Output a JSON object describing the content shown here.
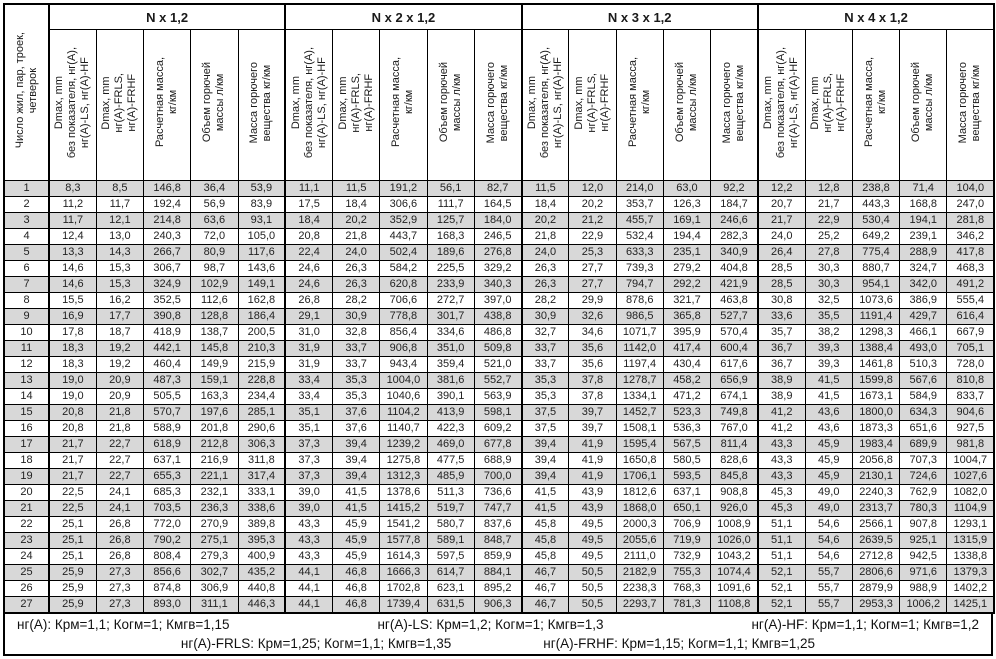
{
  "colors": {
    "shaded_row": "#d8d8d8",
    "border": "#000000",
    "text": "#1a1a1a"
  },
  "table": {
    "row_label_header": "Число жил, пар, троек,\nчетверок",
    "groups": [
      {
        "title": "N x 1,2"
      },
      {
        "title": "N x 2 x 1,2"
      },
      {
        "title": "N x 3 x 1,2"
      },
      {
        "title": "N x 4 x 1,2"
      }
    ],
    "sub_headers": [
      "Dmax, mm\nбез показателя, нг(А),\nнг(А)-LS, нг(А)-HF",
      "Dmax, mm\nнг(А)-FRLS,\nнг(А)-FRHF",
      "Расчетная масса,\nкг/км",
      "Объем горючей\nмассы л/км",
      "Масса горючего\nвещества кг/км"
    ],
    "rows": [
      {
        "n": "1",
        "v": [
          "8,3",
          "8,5",
          "146,8",
          "36,4",
          "53,9",
          "11,1",
          "11,5",
          "191,2",
          "56,1",
          "82,7",
          "11,5",
          "12,0",
          "214,0",
          "63,0",
          "92,2",
          "12,2",
          "12,8",
          "238,8",
          "71,4",
          "104,0"
        ]
      },
      {
        "n": "2",
        "v": [
          "11,2",
          "11,7",
          "192,4",
          "56,9",
          "83,9",
          "17,5",
          "18,4",
          "306,6",
          "111,7",
          "164,5",
          "18,4",
          "20,2",
          "353,7",
          "126,3",
          "184,7",
          "20,7",
          "21,7",
          "443,3",
          "168,8",
          "247,0"
        ]
      },
      {
        "n": "3",
        "v": [
          "11,7",
          "12,1",
          "214,8",
          "63,6",
          "93,1",
          "18,4",
          "20,2",
          "352,9",
          "125,7",
          "184,0",
          "20,2",
          "21,2",
          "455,7",
          "169,1",
          "246,6",
          "21,7",
          "22,9",
          "530,4",
          "194,1",
          "281,8"
        ]
      },
      {
        "n": "4",
        "v": [
          "12,4",
          "13,0",
          "240,3",
          "72,0",
          "105,0",
          "20,8",
          "21,8",
          "443,7",
          "168,3",
          "246,5",
          "21,8",
          "22,9",
          "532,4",
          "194,4",
          "282,3",
          "24,0",
          "25,2",
          "649,2",
          "239,1",
          "346,2"
        ]
      },
      {
        "n": "5",
        "v": [
          "13,3",
          "14,3",
          "266,7",
          "80,9",
          "117,6",
          "22,4",
          "24,0",
          "502,4",
          "189,6",
          "276,8",
          "24,0",
          "25,3",
          "633,3",
          "235,1",
          "340,9",
          "26,4",
          "27,8",
          "775,4",
          "288,9",
          "417,8"
        ]
      },
      {
        "n": "6",
        "v": [
          "14,6",
          "15,3",
          "306,7",
          "98,7",
          "143,6",
          "24,6",
          "26,3",
          "584,2",
          "225,5",
          "329,2",
          "26,3",
          "27,7",
          "739,3",
          "279,2",
          "404,8",
          "28,5",
          "30,3",
          "880,7",
          "324,7",
          "468,3"
        ]
      },
      {
        "n": "7",
        "v": [
          "14,6",
          "15,3",
          "324,9",
          "102,9",
          "149,1",
          "24,6",
          "26,3",
          "620,8",
          "233,9",
          "340,3",
          "26,3",
          "27,7",
          "794,7",
          "292,2",
          "421,9",
          "28,5",
          "30,3",
          "954,1",
          "342,0",
          "491,2"
        ]
      },
      {
        "n": "8",
        "v": [
          "15,5",
          "16,2",
          "352,5",
          "112,6",
          "162,8",
          "26,8",
          "28,2",
          "706,6",
          "272,7",
          "397,0",
          "28,2",
          "29,9",
          "878,6",
          "321,7",
          "463,8",
          "30,8",
          "32,5",
          "1073,6",
          "386,9",
          "555,4"
        ]
      },
      {
        "n": "9",
        "v": [
          "16,9",
          "17,7",
          "390,8",
          "128,8",
          "186,4",
          "29,1",
          "30,9",
          "778,8",
          "301,7",
          "438,8",
          "30,9",
          "32,6",
          "986,5",
          "365,8",
          "527,7",
          "33,6",
          "35,5",
          "1191,4",
          "429,7",
          "616,4"
        ]
      },
      {
        "n": "10",
        "v": [
          "17,8",
          "18,7",
          "418,9",
          "138,7",
          "200,5",
          "31,0",
          "32,8",
          "856,4",
          "334,6",
          "486,8",
          "32,7",
          "34,6",
          "1071,7",
          "395,9",
          "570,4",
          "35,7",
          "38,2",
          "1298,3",
          "466,1",
          "667,9"
        ]
      },
      {
        "n": "11",
        "v": [
          "18,3",
          "19,2",
          "442,1",
          "145,8",
          "210,3",
          "31,9",
          "33,7",
          "906,8",
          "351,0",
          "509,8",
          "33,7",
          "35,6",
          "1142,0",
          "417,4",
          "600,4",
          "36,7",
          "39,3",
          "1388,4",
          "493,0",
          "705,1"
        ]
      },
      {
        "n": "12",
        "v": [
          "18,3",
          "19,2",
          "460,4",
          "149,9",
          "215,9",
          "31,9",
          "33,7",
          "943,4",
          "359,4",
          "521,0",
          "33,7",
          "35,6",
          "1197,4",
          "430,4",
          "617,6",
          "36,7",
          "39,3",
          "1461,8",
          "510,3",
          "728,0"
        ]
      },
      {
        "n": "13",
        "v": [
          "19,0",
          "20,9",
          "487,3",
          "159,1",
          "228,8",
          "33,4",
          "35,3",
          "1004,0",
          "381,6",
          "552,7",
          "35,3",
          "37,8",
          "1278,7",
          "458,2",
          "656,9",
          "38,9",
          "41,5",
          "1599,8",
          "567,6",
          "810,8"
        ]
      },
      {
        "n": "14",
        "v": [
          "19,0",
          "20,9",
          "505,5",
          "163,3",
          "234,4",
          "33,4",
          "35,3",
          "1040,6",
          "390,1",
          "563,9",
          "35,3",
          "37,8",
          "1334,1",
          "471,2",
          "674,1",
          "38,9",
          "41,5",
          "1673,1",
          "584,9",
          "833,7"
        ]
      },
      {
        "n": "15",
        "v": [
          "20,8",
          "21,8",
          "570,7",
          "197,6",
          "285,1",
          "35,1",
          "37,6",
          "1104,2",
          "413,9",
          "598,1",
          "37,5",
          "39,7",
          "1452,7",
          "523,3",
          "749,8",
          "41,2",
          "43,6",
          "1800,0",
          "634,3",
          "904,6"
        ]
      },
      {
        "n": "16",
        "v": [
          "20,8",
          "21,8",
          "588,9",
          "201,8",
          "290,6",
          "35,1",
          "37,6",
          "1140,7",
          "422,3",
          "609,2",
          "37,5",
          "39,7",
          "1508,1",
          "536,3",
          "767,0",
          "41,2",
          "43,6",
          "1873,3",
          "651,6",
          "927,5"
        ]
      },
      {
        "n": "17",
        "v": [
          "21,7",
          "22,7",
          "618,9",
          "212,8",
          "306,3",
          "37,3",
          "39,4",
          "1239,2",
          "469,0",
          "677,8",
          "39,4",
          "41,9",
          "1595,4",
          "567,5",
          "811,4",
          "43,3",
          "45,9",
          "1983,4",
          "689,9",
          "981,8"
        ]
      },
      {
        "n": "18",
        "v": [
          "21,7",
          "22,7",
          "637,1",
          "216,9",
          "311,8",
          "37,3",
          "39,4",
          "1275,8",
          "477,5",
          "688,9",
          "39,4",
          "41,9",
          "1650,8",
          "580,5",
          "828,6",
          "43,3",
          "45,9",
          "2056,8",
          "707,3",
          "1004,7"
        ]
      },
      {
        "n": "19",
        "v": [
          "21,7",
          "22,7",
          "655,3",
          "221,1",
          "317,4",
          "37,3",
          "39,4",
          "1312,3",
          "485,9",
          "700,0",
          "39,4",
          "41,9",
          "1706,1",
          "593,5",
          "845,8",
          "43,3",
          "45,9",
          "2130,1",
          "724,6",
          "1027,6"
        ]
      },
      {
        "n": "20",
        "v": [
          "22,5",
          "24,1",
          "685,3",
          "232,1",
          "333,1",
          "39,0",
          "41,5",
          "1378,6",
          "511,3",
          "736,6",
          "41,5",
          "43,9",
          "1812,6",
          "637,1",
          "908,8",
          "45,3",
          "49,0",
          "2240,3",
          "762,9",
          "1082,0"
        ]
      },
      {
        "n": "21",
        "v": [
          "22,5",
          "24,1",
          "703,5",
          "236,3",
          "338,6",
          "39,0",
          "41,5",
          "1415,2",
          "519,7",
          "747,7",
          "41,5",
          "43,9",
          "1868,0",
          "650,1",
          "926,0",
          "45,3",
          "49,0",
          "2313,7",
          "780,3",
          "1104,9"
        ]
      },
      {
        "n": "22",
        "v": [
          "25,1",
          "26,8",
          "772,0",
          "270,9",
          "389,8",
          "43,3",
          "45,9",
          "1541,2",
          "580,7",
          "837,6",
          "45,8",
          "49,5",
          "2000,3",
          "706,9",
          "1008,9",
          "51,1",
          "54,6",
          "2566,1",
          "907,8",
          "1293,1"
        ]
      },
      {
        "n": "23",
        "v": [
          "25,1",
          "26,8",
          "790,2",
          "275,1",
          "395,3",
          "43,3",
          "45,9",
          "1577,8",
          "589,1",
          "848,7",
          "45,8",
          "49,5",
          "2055,6",
          "719,9",
          "1026,0",
          "51,1",
          "54,6",
          "2639,5",
          "925,1",
          "1315,9"
        ]
      },
      {
        "n": "24",
        "v": [
          "25,1",
          "26,8",
          "808,4",
          "279,3",
          "400,9",
          "43,3",
          "45,9",
          "1614,3",
          "597,5",
          "859,9",
          "45,8",
          "49,5",
          "2111,0",
          "732,9",
          "1043,2",
          "51,1",
          "54,6",
          "2712,8",
          "942,5",
          "1338,8"
        ]
      },
      {
        "n": "25",
        "v": [
          "25,9",
          "27,3",
          "856,6",
          "302,7",
          "435,2",
          "44,1",
          "46,8",
          "1666,3",
          "614,7",
          "884,1",
          "46,7",
          "50,5",
          "2182,9",
          "755,3",
          "1074,4",
          "52,1",
          "55,7",
          "2806,6",
          "971,6",
          "1379,3"
        ]
      },
      {
        "n": "26",
        "v": [
          "25,9",
          "27,3",
          "874,8",
          "306,9",
          "440,8",
          "44,1",
          "46,8",
          "1702,8",
          "623,1",
          "895,2",
          "46,7",
          "50,5",
          "2238,3",
          "768,3",
          "1091,6",
          "52,1",
          "55,7",
          "2879,9",
          "988,9",
          "1402,2"
        ]
      },
      {
        "n": "27",
        "v": [
          "25,9",
          "27,3",
          "893,0",
          "311,1",
          "446,3",
          "44,1",
          "46,8",
          "1739,4",
          "631,5",
          "906,3",
          "46,7",
          "50,5",
          "2293,7",
          "781,3",
          "1108,8",
          "52,1",
          "55,7",
          "2953,3",
          "1006,2",
          "1425,1"
        ]
      }
    ]
  },
  "footer": {
    "line1": [
      "нг(А): Крм=1,1;  Когм=1;  Кмгв=1,15",
      "нг(А)-LS: Крм=1,2;  Когм=1;  Кмгв=1,3",
      "нг(А)-HF: Крм=1,1;  Когм=1;  Кмгв=1,2"
    ],
    "line2": [
      "нг(А)-FRLS: Крм=1,25;  Когм=1,1;  Кмгв=1,35",
      "нг(А)-FRHF: Крм=1,15;  Когм=1,1;  Кмгв=1,25"
    ]
  }
}
